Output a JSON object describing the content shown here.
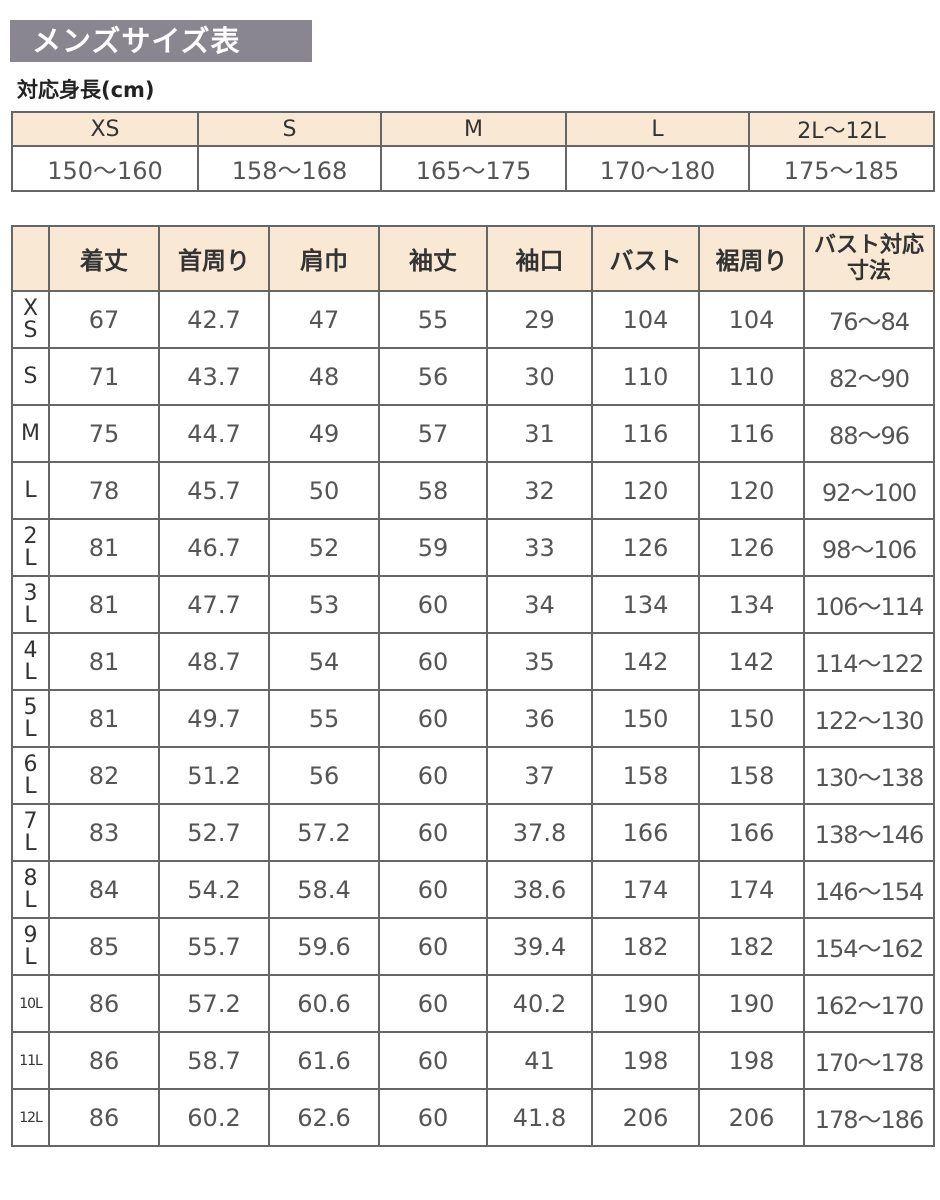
{
  "title": "メンズサイズ表",
  "height_table": {
    "heading": "対応身長(cm)",
    "sizes": [
      "XS",
      "S",
      "M",
      "L",
      "2L〜12L"
    ],
    "heights": [
      "150〜160",
      "158〜168",
      "165〜175",
      "170〜180",
      "175〜185"
    ]
  },
  "size_table": {
    "headers": [
      "",
      "着丈",
      "首周り",
      "肩巾",
      "袖丈",
      "袖口",
      "バスト",
      "裾周り",
      "バスト対応寸法"
    ],
    "rows": [
      [
        "XS",
        "67",
        "42.7",
        "47",
        "55",
        "29",
        "104",
        "104",
        "76〜84"
      ],
      [
        "S",
        "71",
        "43.7",
        "48",
        "56",
        "30",
        "110",
        "110",
        "82〜90"
      ],
      [
        "M",
        "75",
        "44.7",
        "49",
        "57",
        "31",
        "116",
        "116",
        "88〜96"
      ],
      [
        "L",
        "78",
        "45.7",
        "50",
        "58",
        "32",
        "120",
        "120",
        "92〜100"
      ],
      [
        "2L",
        "81",
        "46.7",
        "52",
        "59",
        "33",
        "126",
        "126",
        "98〜106"
      ],
      [
        "3L",
        "81",
        "47.7",
        "53",
        "60",
        "34",
        "134",
        "134",
        "106〜114"
      ],
      [
        "4L",
        "81",
        "48.7",
        "54",
        "60",
        "35",
        "142",
        "142",
        "114〜122"
      ],
      [
        "5L",
        "81",
        "49.7",
        "55",
        "60",
        "36",
        "150",
        "150",
        "122〜130"
      ],
      [
        "6L",
        "82",
        "51.2",
        "56",
        "60",
        "37",
        "158",
        "158",
        "130〜138"
      ],
      [
        "7L",
        "83",
        "52.7",
        "57.2",
        "60",
        "37.8",
        "166",
        "166",
        "138〜146"
      ],
      [
        "8L",
        "84",
        "54.2",
        "58.4",
        "60",
        "38.6",
        "174",
        "174",
        "146〜154"
      ],
      [
        "9L",
        "85",
        "55.7",
        "59.6",
        "60",
        "39.4",
        "182",
        "182",
        "154〜162"
      ],
      [
        "10L",
        "86",
        "57.2",
        "60.6",
        "60",
        "40.2",
        "190",
        "190",
        "162〜170"
      ],
      [
        "11L",
        "86",
        "58.7",
        "61.6",
        "60",
        "41",
        "198",
        "198",
        "170〜178"
      ],
      [
        "12L",
        "86",
        "60.2",
        "62.6",
        "60",
        "41.8",
        "206",
        "206",
        "178〜186"
      ]
    ]
  },
  "colors": {
    "title_bg": "#8a8690",
    "header_bg": "#f9e8d4",
    "border": "#666666"
  }
}
